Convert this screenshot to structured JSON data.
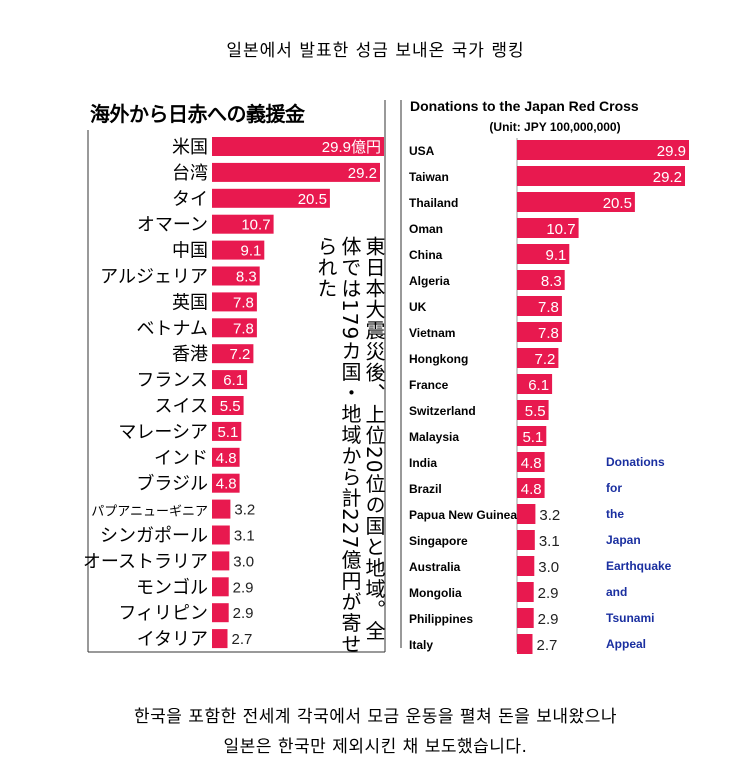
{
  "header": {
    "caption": "일본에서  발표한 성금 보내온 국가 랭킹"
  },
  "footer": {
    "line1": "한국을 포함한 전세계 각국에서 모금 운동을 펼쳐 돈을 보내왔으나",
    "line2": "일본은 한국만  제외시킨 채 보도했습니다."
  },
  "colors": {
    "bar": "#e8194f",
    "text": "#000000",
    "appeal": "#1a2fa0"
  },
  "chart_data": [
    {
      "type": "bar",
      "orientation": "horizontal",
      "title": "海外から日赤への義援金",
      "categories": [
        "米国",
        "台湾",
        "タイ",
        "オマーン",
        "中国",
        "アルジェリア",
        "英国",
        "ベトナム",
        "香港",
        "フランス",
        "スイス",
        "マレーシア",
        "インド",
        "ブラジル",
        "パプアニューギニア",
        "シンガポール",
        "オーストラリア",
        "モンゴル",
        "フィリピン",
        "イタリア"
      ],
      "values": [
        29.9,
        29.2,
        20.5,
        10.7,
        9.1,
        8.3,
        7.8,
        7.8,
        7.2,
        6.1,
        5.5,
        5.1,
        4.8,
        4.8,
        3.2,
        3.1,
        3.0,
        2.9,
        2.9,
        2.7
      ],
      "value_labels": [
        "29.9億円",
        "29.2",
        "20.5",
        "10.7",
        "9.1",
        "8.3",
        "7.8",
        "7.8",
        "7.2",
        "6.1",
        "5.5",
        "5.1",
        "4.8",
        "4.8",
        "3.2",
        "3.1",
        "3.0",
        "2.9",
        "2.9",
        "2.7"
      ],
      "annotation": "東日本大震災後、上位20位の国と地域。全体では179カ国・地域から計227億円が寄せられた"
    },
    {
      "type": "bar",
      "orientation": "horizontal",
      "title": "Donations to the Japan Red Cross",
      "subtitle": "(Unit: JPY 100,000,000)",
      "categories": [
        "USA",
        "Taiwan",
        "Thailand",
        "Oman",
        "China",
        "Algeria",
        "UK",
        "Vietnam",
        "Hongkong",
        "France",
        "Switzerland",
        "Malaysia",
        "India",
        "Brazil",
        "Papua New Guinea",
        "Singapore",
        "Australia",
        "Mongolia",
        "Philippines",
        "Italy"
      ],
      "values": [
        29.9,
        29.2,
        20.5,
        10.7,
        9.1,
        8.3,
        7.8,
        7.8,
        7.2,
        6.1,
        5.5,
        5.1,
        4.8,
        4.8,
        3.2,
        3.1,
        3.0,
        2.9,
        2.9,
        2.7
      ],
      "value_labels": [
        "29.9",
        "29.2",
        "20.5",
        "10.7",
        "9.1",
        "8.3",
        "7.8",
        "7.8",
        "7.2",
        "6.1",
        "5.5",
        "5.1",
        "4.8",
        "4.8",
        "3.2",
        "3.1",
        "3.0",
        "2.9",
        "2.9",
        "2.7"
      ],
      "annotation_lines": [
        "Donations",
        "for",
        "the",
        "Japan",
        "Earthquake",
        "and",
        "Tsunami",
        "Appeal"
      ]
    }
  ]
}
